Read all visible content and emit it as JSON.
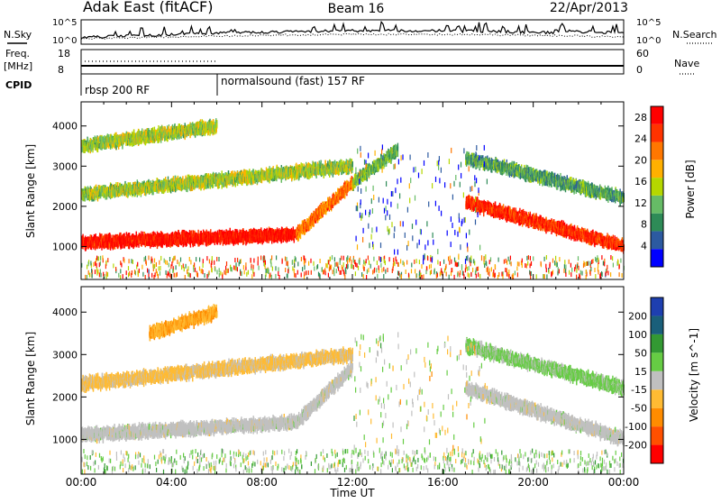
{
  "header": {
    "station": "Adak East (fitACF)",
    "beam": "Beam 16",
    "date": "22/Apr/2013"
  },
  "noise_panel": {
    "left_label": "N.Sky",
    "right_label": "N.Search",
    "left_ticks": [
      "10^5",
      "10^0"
    ],
    "right_ticks": [
      "10^5",
      "10^0"
    ]
  },
  "freq_panel": {
    "left_label_line1": "Freq.",
    "left_label_line2": "[MHz]",
    "left_ticks": [
      "18",
      "8"
    ],
    "right_ticks": [
      "60",
      "0"
    ],
    "right_label": "Nave"
  },
  "cpid": {
    "label": "CPID",
    "segments": [
      {
        "name": "rbsp 200 RF",
        "start_hour": 0,
        "end_hour": 6
      },
      {
        "name": "normalsound (fast) 157 RF",
        "start_hour": 6,
        "end_hour": 24
      }
    ]
  },
  "colors": {
    "power_scale": [
      "#0000ff",
      "#2c5aa0",
      "#2e8b57",
      "#66bb66",
      "#b5d700",
      "#ffb000",
      "#ff7700",
      "#ff3300",
      "#ff0000"
    ],
    "velocity_scale": [
      "#ff0000",
      "#ff5000",
      "#ff8c00",
      "#ffbb33",
      "#c0c0c0",
      "#66cc44",
      "#339933",
      "#1a5f7a",
      "#1e3fb0"
    ]
  },
  "chart_data": [
    {
      "type": "heatmap",
      "name": "power",
      "xlabel": "Time UT",
      "ylabel": "Slant Range [km]",
      "x_ticks": [
        "00:00",
        "04:00",
        "08:00",
        "12:00",
        "16:00",
        "20:00",
        "00:00"
      ],
      "x_range_hours": [
        0,
        24
      ],
      "y_ticks": [
        1000,
        2000,
        3000,
        4000
      ],
      "y_range_km": [
        180,
        4600
      ],
      "colorbar_label": "Power [dB]",
      "colorbar_ticks": [
        4,
        8,
        12,
        16,
        20,
        24,
        28
      ],
      "colorbar_range": [
        0,
        30
      ],
      "bands": [
        {
          "t": [
            0.0,
            9.5
          ],
          "r": [
            1100,
            1300
          ],
          "level": 28
        },
        {
          "t": [
            9.5,
            12.0
          ],
          "r": [
            1300,
            2600
          ],
          "level": 22
        },
        {
          "t": [
            0.0,
            6.0
          ],
          "r": [
            3500,
            4000
          ],
          "level": 14
        },
        {
          "t": [
            0.0,
            12.0
          ],
          "r": [
            2300,
            3000
          ],
          "level": 14
        },
        {
          "t": [
            12.0,
            14.0
          ],
          "r": [
            2600,
            3400
          ],
          "level": 12
        },
        {
          "t": [
            17.0,
            24.0
          ],
          "r": [
            2100,
            1000
          ],
          "level": 26
        },
        {
          "t": [
            17.0,
            24.0
          ],
          "r": [
            3200,
            2200
          ],
          "level": 10
        }
      ]
    },
    {
      "type": "heatmap",
      "name": "velocity",
      "xlabel": "Time UT",
      "ylabel": "Slant Range [km]",
      "x_ticks": [
        "00:00",
        "04:00",
        "08:00",
        "12:00",
        "16:00",
        "20:00",
        "00:00"
      ],
      "x_range_hours": [
        0,
        24
      ],
      "y_ticks": [
        1000,
        2000,
        3000,
        4000
      ],
      "y_range_km": [
        180,
        4600
      ],
      "colorbar_label": "Velocity [m s^-1]",
      "colorbar_tick_labels": [
        "200",
        "100",
        "50",
        "15",
        "-15",
        "-50",
        "-100",
        "-200"
      ],
      "colorbar_range": [
        -250,
        250
      ],
      "bands": [
        {
          "t": [
            0.0,
            9.5
          ],
          "r": [
            1100,
            1400
          ],
          "level": 0
        },
        {
          "t": [
            9.5,
            12.0
          ],
          "r": [
            1400,
            2700
          ],
          "level": 0
        },
        {
          "t": [
            3.0,
            6.0
          ],
          "r": [
            3500,
            4000
          ],
          "level": -80
        },
        {
          "t": [
            0.0,
            12.0
          ],
          "r": [
            2300,
            3000
          ],
          "level": -40
        },
        {
          "t": [
            17.0,
            24.0
          ],
          "r": [
            2200,
            1000
          ],
          "level": 0
        },
        {
          "t": [
            17.0,
            24.0
          ],
          "r": [
            3200,
            2200
          ],
          "level": 40
        }
      ]
    }
  ]
}
